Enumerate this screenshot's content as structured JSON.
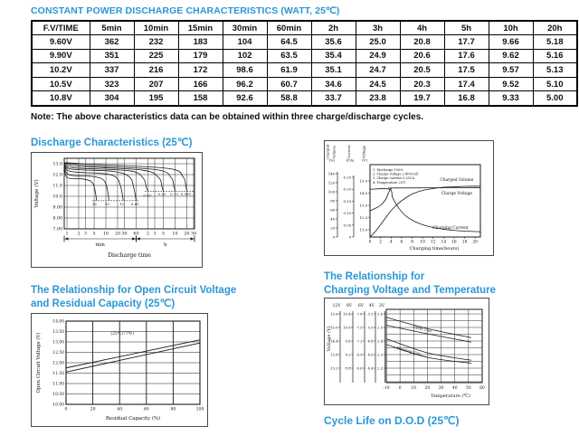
{
  "header": {
    "title": "CONSTANT POWER DISCHARGE CHARACTERISTICS (WATT, 25℃)",
    "note": "Note: The above characteristics data can be obtained within three charge/discharge cycles."
  },
  "table": {
    "headers": [
      "F.V/TIME",
      "5min",
      "10min",
      "15min",
      "30min",
      "60min",
      "2h",
      "3h",
      "4h",
      "5h",
      "10h",
      "20h"
    ],
    "rows": [
      [
        "9.60V",
        "362",
        "232",
        "183",
        "104",
        "64.5",
        "35.6",
        "25.0",
        "20.8",
        "17.7",
        "9.66",
        "5.18"
      ],
      [
        "9.90V",
        "351",
        "225",
        "179",
        "102",
        "63.5",
        "35.4",
        "24.9",
        "20.6",
        "17.6",
        "9.62",
        "5.16"
      ],
      [
        "10.2V",
        "337",
        "216",
        "172",
        "98.6",
        "61.9",
        "35.1",
        "24.7",
        "20.5",
        "17.5",
        "9.57",
        "5.13"
      ],
      [
        "10.5V",
        "323",
        "207",
        "166",
        "96.2",
        "60.7",
        "34.6",
        "24.5",
        "20.3",
        "17.4",
        "9.52",
        "5.10"
      ],
      [
        "10.8V",
        "304",
        "195",
        "158",
        "92.6",
        "58.8",
        "33.7",
        "23.8",
        "19.7",
        "16.8",
        "9.33",
        "5.00"
      ]
    ]
  },
  "sections": {
    "discharge_title": "Discharge Characteristics (25℃)",
    "ocv_title_1": "The Relationship for Open Circuit Voltage",
    "ocv_title_2": "and Residual Capacity (25℃)",
    "temp_title_1": "The Relationship for",
    "temp_title_2": "Charging Voltage and Temperature",
    "cycle_life_title": "Cycle Life on D.O.D (25℃)"
  },
  "chart_data": [
    {
      "id": "discharge",
      "type": "line",
      "title": "Discharge Characteristics (25℃)",
      "ylabel": "Voltage (V)",
      "xlabel": "Discharge time",
      "x_unit_labels": [
        "min",
        "h"
      ],
      "ylim": [
        7.0,
        13.5
      ],
      "y_ticks": [
        "13.0",
        "12.0",
        "11.0",
        "10.0",
        "9.00",
        "8.00",
        "7.00"
      ],
      "y_tick_values": [
        13,
        12,
        11,
        10,
        9,
        8,
        7
      ],
      "xlim_minutes": [
        0.85,
        1900
      ],
      "x_ticks": [
        {
          "label": "1",
          "t": 1
        },
        {
          "label": "2",
          "t": 2
        },
        {
          "label": "3",
          "t": 3
        },
        {
          "label": "5",
          "t": 5
        },
        {
          "label": "10",
          "t": 10
        },
        {
          "label": "20",
          "t": 20
        },
        {
          "label": "30",
          "t": 30
        },
        {
          "label": "60",
          "t": 60
        },
        {
          "label": "2",
          "t": 120
        },
        {
          "label": "3",
          "t": 180
        },
        {
          "label": "5",
          "t": 300
        },
        {
          "label": "10",
          "t": 600
        },
        {
          "label": "20",
          "t": 1200
        },
        {
          "label": "30",
          "t": 1800
        }
      ],
      "cutoff_lines": [
        {
          "v": 9.6,
          "from": 4.5,
          "to": 70
        },
        {
          "v": 10.45,
          "from": 100,
          "to": 1800
        }
      ],
      "series": [
        {
          "name": "3C",
          "points": [
            [
              0.85,
              13.0
            ],
            [
              1.0,
              11.75
            ],
            [
              2.5,
              11.6
            ],
            [
              4,
              11.4
            ],
            [
              5,
              10.9
            ],
            [
              5.8,
              9.62
            ]
          ],
          "label_t": 5.2,
          "label_v": 9.3
        },
        {
          "name": "2C",
          "points": [
            [
              0.85,
              13.0
            ],
            [
              1.1,
              12.0
            ],
            [
              4,
              11.85
            ],
            [
              8,
              11.6
            ],
            [
              10.5,
              10.9
            ],
            [
              12,
              9.62
            ]
          ],
          "label_t": 11,
          "label_v": 9.3
        },
        {
          "name": "1C",
          "points": [
            [
              0.85,
              13.0
            ],
            [
              1.2,
              12.3
            ],
            [
              8,
              12.1
            ],
            [
              18,
              11.78
            ],
            [
              24,
              10.9
            ],
            [
              28,
              9.62
            ]
          ],
          "label_t": 26,
          "label_v": 9.3
        },
        {
          "name": "0.6C",
          "points": [
            [
              0.85,
              13.0
            ],
            [
              1.3,
              12.5
            ],
            [
              15,
              12.3
            ],
            [
              40,
              11.8
            ],
            [
              52,
              10.8
            ],
            [
              60,
              9.62
            ]
          ],
          "label_t": 57,
          "label_v": 9.3
        },
        {
          "name": "0.4C",
          "points": [
            [
              0.85,
              13.05
            ],
            [
              1.5,
              12.62
            ],
            [
              40,
              12.35
            ],
            [
              90,
              11.7
            ],
            [
              110,
              10.8
            ],
            [
              122,
              10.47
            ]
          ],
          "label_t": 118,
          "label_v": 10.1
        },
        {
          "name": "0.2C",
          "points": [
            [
              0.85,
              13.05
            ],
            [
              2,
              12.75
            ],
            [
              90,
              12.4
            ],
            [
              230,
              11.7
            ],
            [
              275,
              10.9
            ],
            [
              300,
              10.47
            ]
          ],
          "label_t": 280,
          "label_v": 10.2
        },
        {
          "name": "0.1C",
          "points": [
            [
              0.85,
              13.1
            ],
            [
              3,
              12.85
            ],
            [
              200,
              12.45
            ],
            [
              480,
              11.7
            ],
            [
              560,
              10.9
            ],
            [
              610,
              10.47
            ]
          ],
          "label_t": 580,
          "label_v": 10.2
        },
        {
          "name": "0.05C",
          "points": [
            [
              0.85,
              13.1
            ],
            [
              5,
              12.95
            ],
            [
              420,
              12.55
            ],
            [
              980,
              11.75
            ],
            [
              1130,
              10.95
            ],
            [
              1220,
              10.5
            ]
          ],
          "label_t": 1150,
          "label_v": 10.2
        }
      ]
    },
    {
      "id": "charging",
      "type": "line",
      "xlabel": "Charging time(hours)",
      "xlim": [
        0,
        21
      ],
      "x_ticks": [
        0,
        2,
        4,
        6,
        8,
        10,
        12,
        14,
        16,
        18,
        20
      ],
      "axes": [
        {
          "title_words": [
            "Charged",
            "Volume"
          ],
          "unit": "(%)",
          "ticks": [
            "140",
            "120",
            "100",
            "80",
            "60",
            "40",
            "20",
            "0"
          ],
          "tick_values": [
            140,
            120,
            100,
            80,
            60,
            40,
            20,
            0
          ]
        },
        {
          "title_words": [
            "Current"
          ],
          "unit": "(CA)",
          "ticks": [
            "0.25",
            "0.20",
            "0.15",
            "0.10",
            "0.05",
            "0"
          ],
          "tick_values": [
            0.25,
            0.2,
            0.15,
            0.1,
            0.05,
            0
          ]
        },
        {
          "title_words": [
            "Voltage"
          ],
          "unit": "(V)",
          "ticks": [
            "15.0",
            "14.0",
            "13.0",
            "12.0",
            "11.0"
          ],
          "tick_values": [
            15,
            14,
            13,
            12,
            11
          ]
        }
      ],
      "notes": [
        "1. Discharge 100%",
        "2. Charge voltage 2.40V/cell",
        "3. Charge current 0.25CA",
        "4. Temperature 25℃"
      ],
      "series": [
        {
          "name": "Charged Volume",
          "axis": 0,
          "points": [
            [
              0,
              0
            ],
            [
              1,
              12
            ],
            [
              2,
              27
            ],
            [
              3,
              43
            ],
            [
              4,
              58
            ],
            [
              5,
              70
            ],
            [
              6,
              80
            ],
            [
              7,
              88
            ],
            [
              8,
              95
            ],
            [
              10,
              103
            ],
            [
              12,
              107
            ],
            [
              14,
              110
            ],
            [
              16,
              111
            ],
            [
              18,
              112
            ],
            [
              21,
              112.5
            ]
          ],
          "label_x": 16.5,
          "label_v": 124
        },
        {
          "name": "Charge Voltage",
          "axis": 2,
          "points": [
            [
              0,
              12.55
            ],
            [
              1,
              12.75
            ],
            [
              2,
              13.0
            ],
            [
              3,
              13.5
            ],
            [
              3.6,
              14.1
            ],
            [
              4.1,
              14.38
            ],
            [
              5,
              14.42
            ],
            [
              21,
              14.45
            ]
          ],
          "label_x": 16.5,
          "label_v": 13.9
        },
        {
          "name": "Charging Current",
          "axis": 1,
          "points": [
            [
              0,
              0.2
            ],
            [
              3.7,
              0.2
            ],
            [
              4.3,
              0.165
            ],
            [
              5.5,
              0.12
            ],
            [
              7,
              0.085
            ],
            [
              9,
              0.06
            ],
            [
              11,
              0.045
            ],
            [
              13,
              0.036
            ],
            [
              15,
              0.03
            ],
            [
              17,
              0.026
            ],
            [
              21,
              0.022
            ]
          ],
          "label_x": 15.3,
          "label_v": 0.035
        }
      ]
    },
    {
      "id": "ocv",
      "type": "line",
      "xlabel": "Residual Capacity (%)",
      "ylabel": "Open Circuit Voltage (V)",
      "xlim": [
        0,
        100
      ],
      "x_ticks": [
        "0",
        "20",
        "40",
        "60",
        "80",
        "100"
      ],
      "x_tick_values": [
        0,
        20,
        40,
        60,
        80,
        100
      ],
      "ylim": [
        10.0,
        14.0
      ],
      "y_ticks": [
        "14.00",
        "13.50",
        "13.00",
        "12.50",
        "12.00",
        "11.50",
        "11.00",
        "10.50",
        "10.00"
      ],
      "y_tick_values": [
        14,
        13.5,
        13,
        12.5,
        12,
        11.5,
        11,
        10.5,
        10
      ],
      "annotation": {
        "text": "(25℃/77℉)",
        "x": 42,
        "v": 13.35
      },
      "series": [
        {
          "name": "upper-line",
          "points": [
            [
              0,
              11.75
            ],
            [
              100,
              13.1
            ]
          ]
        },
        {
          "name": "lower-line",
          "points": [
            [
              0,
              11.55
            ],
            [
              100,
              12.95
            ]
          ]
        }
      ]
    },
    {
      "id": "temp",
      "type": "line",
      "xlabel": "Temperature (℃)",
      "ylabel": "Voltage (V)",
      "xlim": [
        -10,
        60
      ],
      "x_ticks": [
        "-10",
        "0",
        "10",
        "20",
        "30",
        "40",
        "50",
        "60"
      ],
      "x_tick_values": [
        -10,
        0,
        10,
        20,
        30,
        40,
        50,
        60
      ],
      "scales": [
        {
          "name": "12V",
          "ticks": [
            "15.6",
            "15.0",
            "14.4",
            "13.8",
            "13.2"
          ]
        },
        {
          "name": "8V",
          "ticks": [
            "10.4",
            "10.0",
            "9.6",
            "9.2",
            "8.8"
          ]
        },
        {
          "name": "6V",
          "ticks": [
            "7.8",
            "7.5",
            "7.2",
            "6.9",
            "6.6"
          ]
        },
        {
          "name": "4V",
          "ticks": [
            "5.2",
            "5.0",
            "4.8",
            "4.6",
            "4.4"
          ]
        },
        {
          "name": "2V",
          "ticks": [
            "2.6",
            "2.5",
            "2.4",
            "2.3",
            "2.2"
          ]
        }
      ],
      "y12_lim": [
        13.2,
        15.6
      ],
      "bands": [
        {
          "name": "Cycle Use",
          "upper": [
            [
              -10,
              15.45
            ],
            [
              20,
              14.95
            ],
            [
              52,
              14.55
            ]
          ],
          "lower": [
            [
              -10,
              15.1
            ],
            [
              20,
              14.72
            ],
            [
              52,
              14.35
            ]
          ],
          "label_t": 16,
          "label_v": 14.88
        },
        {
          "name": "Floating Use",
          "upper": [
            [
              -10,
              14.5
            ],
            [
              20,
              13.88
            ],
            [
              52,
              13.55
            ]
          ],
          "lower": [
            [
              -10,
              14.25
            ],
            [
              20,
              13.68
            ],
            [
              52,
              13.42
            ]
          ],
          "label_t": 6,
          "label_v": 13.91
        }
      ]
    }
  ]
}
